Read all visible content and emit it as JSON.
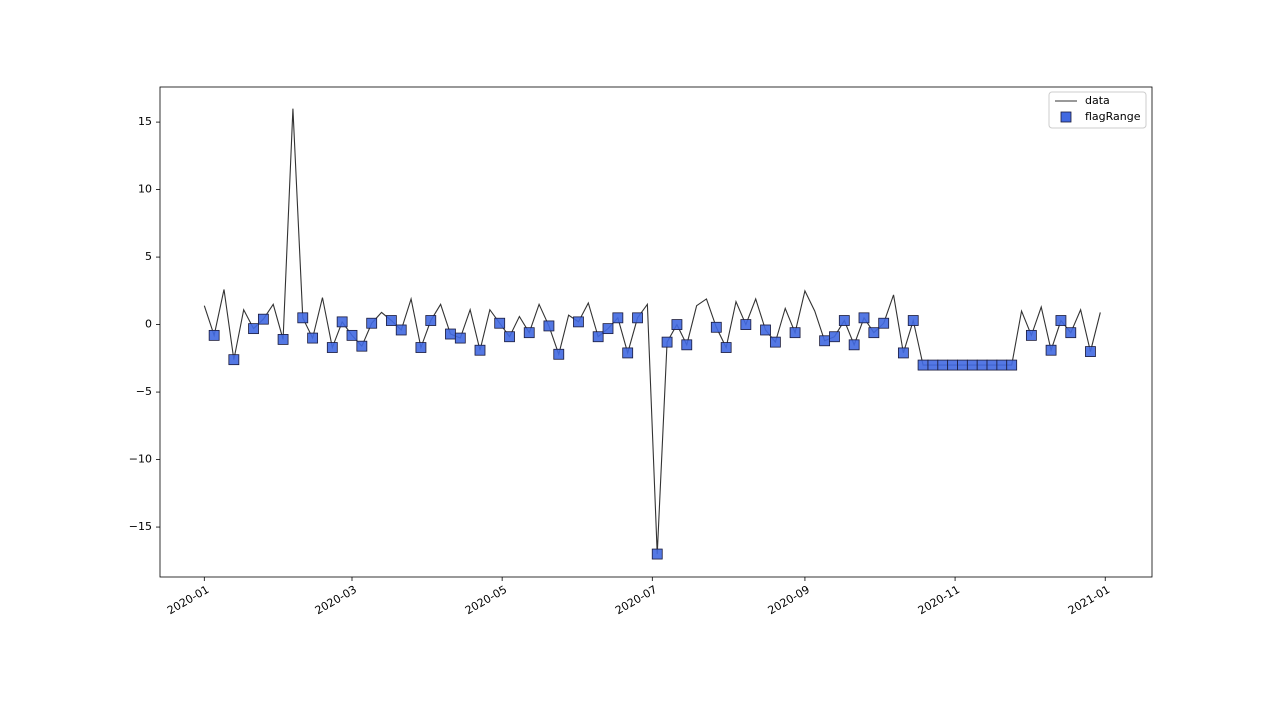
{
  "chart_data": {
    "type": "line",
    "x": [
      "2020-01-01",
      "2020-01-05",
      "2020-01-09",
      "2020-01-13",
      "2020-01-17",
      "2020-01-21",
      "2020-01-25",
      "2020-01-29",
      "2020-02-02",
      "2020-02-06",
      "2020-02-10",
      "2020-02-14",
      "2020-02-18",
      "2020-02-22",
      "2020-02-26",
      "2020-03-01",
      "2020-03-05",
      "2020-03-09",
      "2020-03-13",
      "2020-03-17",
      "2020-03-21",
      "2020-03-25",
      "2020-03-29",
      "2020-04-02",
      "2020-04-06",
      "2020-04-10",
      "2020-04-14",
      "2020-04-18",
      "2020-04-22",
      "2020-04-26",
      "2020-04-30",
      "2020-05-04",
      "2020-05-08",
      "2020-05-12",
      "2020-05-16",
      "2020-05-20",
      "2020-05-24",
      "2020-05-28",
      "2020-06-01",
      "2020-06-05",
      "2020-06-09",
      "2020-06-13",
      "2020-06-17",
      "2020-06-21",
      "2020-06-25",
      "2020-06-29",
      "2020-07-03",
      "2020-07-07",
      "2020-07-11",
      "2020-07-15",
      "2020-07-19",
      "2020-07-23",
      "2020-07-27",
      "2020-07-31",
      "2020-08-04",
      "2020-08-08",
      "2020-08-12",
      "2020-08-16",
      "2020-08-20",
      "2020-08-24",
      "2020-08-28",
      "2020-09-01",
      "2020-09-05",
      "2020-09-09",
      "2020-09-13",
      "2020-09-17",
      "2020-09-21",
      "2020-09-25",
      "2020-09-29",
      "2020-10-03",
      "2020-10-07",
      "2020-10-11",
      "2020-10-15",
      "2020-10-19",
      "2020-10-23",
      "2020-10-27",
      "2020-10-31",
      "2020-11-04",
      "2020-11-08",
      "2020-11-12",
      "2020-11-16",
      "2020-11-20",
      "2020-11-24",
      "2020-11-28",
      "2020-12-02",
      "2020-12-06",
      "2020-12-10",
      "2020-12-14",
      "2020-12-18",
      "2020-12-22",
      "2020-12-26",
      "2020-12-30"
    ],
    "series": [
      {
        "name": "data",
        "type": "line",
        "color": "#333333",
        "values": [
          1.4,
          -0.8,
          2.6,
          -2.6,
          1.1,
          -0.3,
          0.4,
          1.5,
          -1.1,
          16.0,
          0.5,
          -1.0,
          2.0,
          -1.7,
          0.2,
          -0.8,
          -1.6,
          0.1,
          0.9,
          0.3,
          -0.4,
          1.9,
          -1.7,
          0.3,
          1.5,
          -0.7,
          -1.0,
          1.1,
          -1.9,
          1.1,
          0.1,
          -0.9,
          0.6,
          -0.6,
          1.5,
          -0.1,
          -2.2,
          0.7,
          0.2,
          1.6,
          -0.9,
          -0.3,
          0.5,
          -2.1,
          0.5,
          1.5,
          -17.0,
          -1.3,
          0.0,
          -1.5,
          1.4,
          1.9,
          -0.2,
          -1.7,
          1.7,
          0.0,
          1.9,
          -0.4,
          -1.3,
          1.2,
          -0.6,
          2.5,
          1.0,
          -1.2,
          -0.9,
          0.3,
          -1.5,
          0.5,
          -0.6,
          0.1,
          2.2,
          -2.1,
          0.3,
          -3,
          -3,
          -3,
          -3,
          -3,
          -3,
          -3,
          -3,
          -3,
          -3,
          1.0,
          -0.8,
          1.3,
          -1.9,
          0.3,
          -0.6,
          1.1,
          -2.0,
          0.9
        ]
      },
      {
        "name": "flagRange",
        "type": "scatter",
        "color": "#4169e1",
        "x": [
          "2020-01-05",
          "2020-01-13",
          "2020-01-21",
          "2020-01-25",
          "2020-02-02",
          "2020-02-10",
          "2020-02-14",
          "2020-02-22",
          "2020-02-26",
          "2020-03-01",
          "2020-03-05",
          "2020-03-09",
          "2020-03-17",
          "2020-03-21",
          "2020-03-29",
          "2020-04-02",
          "2020-04-10",
          "2020-04-14",
          "2020-04-22",
          "2020-04-30",
          "2020-05-04",
          "2020-05-12",
          "2020-05-20",
          "2020-05-24",
          "2020-06-01",
          "2020-06-09",
          "2020-06-13",
          "2020-06-17",
          "2020-06-21",
          "2020-06-25",
          "2020-07-03",
          "2020-07-07",
          "2020-07-11",
          "2020-07-15",
          "2020-07-27",
          "2020-07-31",
          "2020-08-08",
          "2020-08-16",
          "2020-08-20",
          "2020-08-28",
          "2020-09-09",
          "2020-09-13",
          "2020-09-17",
          "2020-09-21",
          "2020-09-25",
          "2020-09-29",
          "2020-10-03",
          "2020-10-11",
          "2020-10-15",
          "2020-10-19",
          "2020-10-23",
          "2020-10-27",
          "2020-10-31",
          "2020-11-04",
          "2020-11-08",
          "2020-11-12",
          "2020-11-16",
          "2020-11-20",
          "2020-11-24",
          "2020-12-02",
          "2020-12-10",
          "2020-12-14",
          "2020-12-18",
          "2020-12-26"
        ],
        "values": [
          -0.8,
          -2.6,
          -0.3,
          0.4,
          -1.1,
          0.5,
          -1.0,
          -1.7,
          0.2,
          -0.8,
          -1.6,
          0.1,
          0.3,
          -0.4,
          -1.7,
          0.3,
          -0.7,
          -1.0,
          -1.9,
          0.1,
          -0.9,
          -0.6,
          -0.1,
          -2.2,
          0.2,
          -0.9,
          -0.3,
          0.5,
          -2.1,
          0.5,
          -17.0,
          -1.3,
          0.0,
          -1.5,
          -0.2,
          -1.7,
          0.0,
          -0.4,
          -1.3,
          -0.6,
          -1.2,
          -0.9,
          0.3,
          -1.5,
          0.5,
          -0.6,
          0.1,
          -2.1,
          0.3,
          -3,
          -3,
          -3,
          -3,
          -3,
          -3,
          -3,
          -3,
          -3,
          -3,
          -0.8,
          -1.9,
          0.3,
          -0.6,
          -2.0
        ]
      }
    ],
    "xlim": [
      "2019-12-14",
      "2021-01-20"
    ],
    "xticks": [
      {
        "value": "2020-01-01",
        "label": "2020-01"
      },
      {
        "value": "2020-03-01",
        "label": "2020-03"
      },
      {
        "value": "2020-05-01",
        "label": "2020-05"
      },
      {
        "value": "2020-07-01",
        "label": "2020-07"
      },
      {
        "value": "2020-09-01",
        "label": "2020-09"
      },
      {
        "value": "2020-11-01",
        "label": "2020-11"
      },
      {
        "value": "2021-01-01",
        "label": "2021-01"
      }
    ],
    "ylim": [
      -18.7,
      17.6
    ],
    "yticks": [
      {
        "value": -15,
        "label": "−15"
      },
      {
        "value": -10,
        "label": "−10"
      },
      {
        "value": -5,
        "label": "−5"
      },
      0,
      5,
      10,
      15
    ],
    "grid": false,
    "legend": "upper right"
  }
}
